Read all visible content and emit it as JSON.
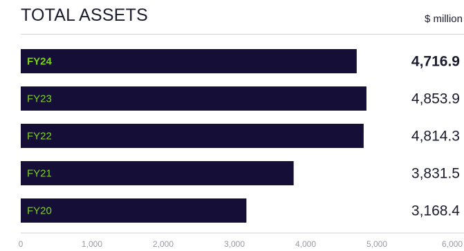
{
  "title": "TOTAL ASSETS",
  "unit": "$ million",
  "chart_data": {
    "type": "bar",
    "orientation": "horizontal",
    "title": "TOTAL ASSETS",
    "unit": "$ million",
    "categories": [
      "FY24",
      "FY23",
      "FY22",
      "FY21",
      "FY20"
    ],
    "values": [
      4716.9,
      4853.9,
      4814.3,
      3831.5,
      3168.4
    ],
    "value_labels": [
      "4,716.9",
      "4,853.9",
      "4,814.3",
      "3,831.5",
      "3,168.4"
    ],
    "highlight": "FY24",
    "xlim": [
      0,
      6000
    ],
    "xticks": [
      0,
      1000,
      2000,
      3000,
      4000,
      5000,
      6000
    ],
    "xtick_labels": [
      "0",
      "1,000",
      "2,000",
      "3,000",
      "4,000",
      "5,000",
      "6,000"
    ],
    "grid": false,
    "colors": {
      "bar": "#150f38",
      "category_label": "#7ed321",
      "text": "#1a1a2e",
      "tick": "#9a9aa6"
    }
  }
}
